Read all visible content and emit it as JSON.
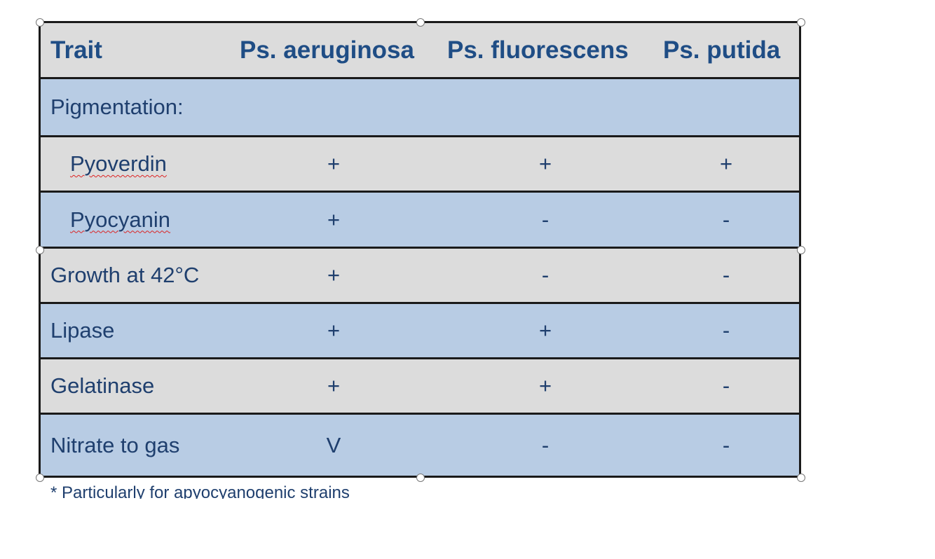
{
  "table": {
    "header": [
      "Trait",
      "Ps. aeruginosa",
      "Ps. fluorescens",
      "Ps. putida"
    ],
    "rows": [
      [
        "Pigmentation:",
        "",
        "",
        ""
      ],
      [
        "Pyoverdin",
        "+",
        "+",
        "+"
      ],
      [
        "Pyocyanin",
        "+",
        "-",
        "-"
      ],
      [
        "Growth at 42°C",
        "+",
        "-",
        "-"
      ],
      [
        "Lipase",
        "+",
        "+",
        "-"
      ],
      [
        "Gelatinase",
        "+",
        "+",
        "-"
      ],
      [
        "Nitrate to gas",
        "V",
        "-",
        "-"
      ]
    ]
  },
  "footnote": "* Particularly for apyocyanogenic strains"
}
